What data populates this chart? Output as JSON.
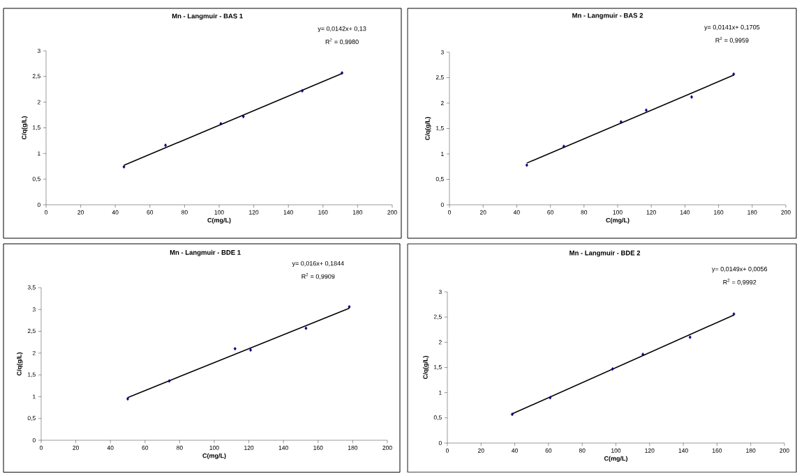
{
  "chart_data": [
    {
      "type": "scatter",
      "title": "Mn - Langmuir - BAS 1",
      "xlabel": "C(mg/L)",
      "ylabel": "C/q(g/L)",
      "xlim": [
        0,
        200
      ],
      "ylim": [
        0,
        3
      ],
      "xticks": [
        0,
        20,
        40,
        60,
        80,
        100,
        120,
        140,
        160,
        180,
        200
      ],
      "yticks": [
        0,
        {
          "value": 0.5,
          "label": "0,5"
        },
        1,
        {
          "value": 1.5,
          "label": "1,5"
        },
        2,
        {
          "value": 2.5,
          "label": "2,5"
        },
        3
      ],
      "annotations": [
        "y= 0,0142x+ 0,13",
        "R$^{2}$ = 0,9980"
      ],
      "series": [
        {
          "type": "scatter",
          "color": "#000080",
          "marker": "diamond",
          "x": [
            45,
            69,
            101,
            114,
            148,
            171
          ],
          "values": [
            0.74,
            1.16,
            1.58,
            1.72,
            2.22,
            2.57
          ]
        },
        {
          "type": "line",
          "color": "#000000",
          "marker": "none",
          "x": [
            45,
            171
          ],
          "values": [
            0.77,
            2.56
          ]
        }
      ]
    },
    {
      "type": "scatter",
      "title": "Mn - Langmuir - BAS 2",
      "xlabel": "C(mg/L)",
      "ylabel": "C/q(g/L)",
      "xlim": [
        0,
        200
      ],
      "ylim": [
        0,
        3
      ],
      "xticks": [
        0,
        20,
        40,
        60,
        80,
        100,
        120,
        140,
        160,
        180,
        200
      ],
      "yticks": [
        0,
        {
          "value": 0.5,
          "label": "0,5"
        },
        1,
        {
          "value": 1.5,
          "label": "1,5"
        },
        2,
        {
          "value": 2.5,
          "label": "2,5"
        },
        3
      ],
      "annotations": [
        "y= 0,0141x+ 0,1705",
        "R$^{2}$ = 0,9959"
      ],
      "series": [
        {
          "type": "scatter",
          "color": "#000080",
          "marker": "diamond",
          "x": [
            46,
            68,
            102,
            117,
            144,
            169
          ],
          "values": [
            0.78,
            1.15,
            1.63,
            1.86,
            2.12,
            2.57
          ]
        },
        {
          "type": "line",
          "color": "#000000",
          "marker": "none",
          "x": [
            46,
            169
          ],
          "values": [
            0.82,
            2.55
          ]
        }
      ]
    },
    {
      "type": "scatter",
      "title": "Mn - Langmuir - BDE 1",
      "xlabel": "C(mg/L)",
      "ylabel": "C/q(g/L)",
      "xlim": [
        0,
        200
      ],
      "ylim": [
        0,
        3.5
      ],
      "xticks": [
        0,
        20,
        40,
        60,
        80,
        100,
        120,
        140,
        160,
        180,
        200
      ],
      "yticks": [
        0,
        {
          "value": 0.5,
          "label": "0,5"
        },
        1,
        {
          "value": 1.5,
          "label": "1,5"
        },
        2,
        {
          "value": 2.5,
          "label": "2,5"
        },
        3,
        {
          "value": 3.5,
          "label": "3,5"
        }
      ],
      "annotations": [
        "y= 0,016x+ 0,1844",
        "R$^{2}$ = 0,9909"
      ],
      "series": [
        {
          "type": "scatter",
          "color": "#000080",
          "marker": "diamond",
          "x": [
            50,
            74,
            112,
            121,
            153,
            178
          ],
          "values": [
            0.95,
            1.36,
            2.1,
            2.07,
            2.57,
            3.06
          ]
        },
        {
          "type": "line",
          "color": "#000000",
          "marker": "none",
          "x": [
            50,
            178
          ],
          "values": [
            0.98,
            3.03
          ]
        }
      ]
    },
    {
      "type": "scatter",
      "title": "Mn - Langmuir - BDE 2",
      "xlabel": "C(mg/L)",
      "ylabel": "C/q(g/L)",
      "xlim": [
        0,
        200
      ],
      "ylim": [
        0,
        3
      ],
      "xticks": [
        0,
        20,
        40,
        60,
        80,
        100,
        120,
        140,
        160,
        180,
        200
      ],
      "yticks": [
        0,
        {
          "value": 0.5,
          "label": "0,5"
        },
        1,
        {
          "value": 1.5,
          "label": "1,5"
        },
        2,
        {
          "value": 2.5,
          "label": "2,5"
        },
        3
      ],
      "annotations": [
        "y= 0,0149x+ 0,0056",
        "R$^{2}$ = 0,9992"
      ],
      "series": [
        {
          "type": "scatter",
          "color": "#000080",
          "marker": "diamond",
          "x": [
            38.5,
            61,
            98,
            116,
            144,
            170
          ],
          "values": [
            0.57,
            0.9,
            1.47,
            1.76,
            2.1,
            2.56
          ]
        },
        {
          "type": "line",
          "color": "#000000",
          "marker": "none",
          "x": [
            38.5,
            170
          ],
          "values": [
            0.58,
            2.54
          ]
        }
      ]
    }
  ]
}
